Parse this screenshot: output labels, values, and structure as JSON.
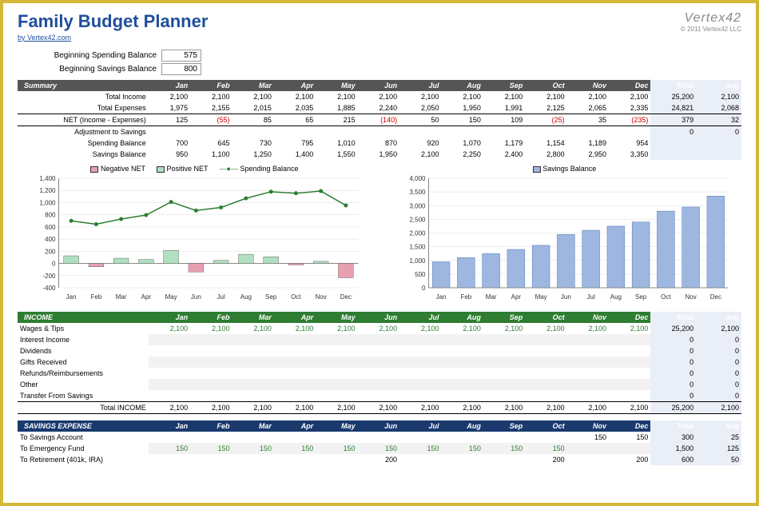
{
  "header": {
    "title": "Family Budget Planner",
    "sub_link": "by Vertex42.com",
    "logo": "Vertex42",
    "copyright": "© 2011 Vertex42 LLC"
  },
  "balances": {
    "spending_label": "Beginning Spending Balance",
    "spending_value": "575",
    "savings_label": "Beginning Savings Balance",
    "savings_value": "800"
  },
  "months": [
    "Jan",
    "Feb",
    "Mar",
    "Apr",
    "May",
    "Jun",
    "Jul",
    "Aug",
    "Sep",
    "Oct",
    "Nov",
    "Dec"
  ],
  "summary": {
    "title": "Summary",
    "rows": [
      {
        "label": "Total Income",
        "vals": [
          "2,100",
          "2,100",
          "2,100",
          "2,100",
          "2,100",
          "2,100",
          "2,100",
          "2,100",
          "2,100",
          "2,100",
          "2,100",
          "2,100"
        ],
        "total": "25,200",
        "avg": "2,100"
      },
      {
        "label": "Total Expenses",
        "vals": [
          "1,975",
          "2,155",
          "2,015",
          "2,035",
          "1,885",
          "2,240",
          "2,050",
          "1,950",
          "1,991",
          "2,125",
          "2,065",
          "2,335"
        ],
        "total": "24,821",
        "avg": "2,068"
      }
    ],
    "net": {
      "label": "NET (Income - Expenses)",
      "vals": [
        "125",
        "(55)",
        "85",
        "65",
        "215",
        "(140)",
        "50",
        "150",
        "109",
        "(25)",
        "35",
        "(235)"
      ],
      "neg": [
        false,
        true,
        false,
        false,
        false,
        true,
        false,
        false,
        false,
        true,
        false,
        true
      ],
      "total": "379",
      "avg": "32"
    },
    "adj": {
      "label": "Adjustment to Savings",
      "vals": [
        "",
        "",
        "",
        "",
        "",
        "",
        "",
        "",
        "",
        "",
        "",
        ""
      ],
      "total": "0",
      "avg": "0"
    },
    "spend": {
      "label": "Spending Balance",
      "vals": [
        "700",
        "645",
        "730",
        "795",
        "1,010",
        "870",
        "920",
        "1,070",
        "1,179",
        "1,154",
        "1,189",
        "954"
      ],
      "total": "",
      "avg": ""
    },
    "save": {
      "label": "Savings Balance",
      "vals": [
        "950",
        "1,100",
        "1,250",
        "1,400",
        "1,550",
        "1,950",
        "2,100",
        "2,250",
        "2,400",
        "2,800",
        "2,950",
        "3,350"
      ],
      "total": "",
      "avg": ""
    }
  },
  "chart_left": {
    "legend": [
      {
        "name": "Negative NET",
        "color": "#e8a0b0",
        "type": "box"
      },
      {
        "name": "Positive NET",
        "color": "#b0e0c0",
        "type": "box"
      },
      {
        "name": "Spending Balance",
        "color": "#2e7d32",
        "type": "line"
      }
    ],
    "ylim": [
      -400,
      1400
    ],
    "ystep": 200,
    "net_values": [
      125,
      -55,
      85,
      65,
      215,
      -140,
      50,
      150,
      109,
      -25,
      35,
      -235
    ],
    "spend_values": [
      700,
      645,
      730,
      795,
      1010,
      870,
      920,
      1070,
      1179,
      1154,
      1189,
      954
    ],
    "pos_color": "#b0e0c0",
    "neg_color": "#e8a0b0",
    "line_color": "#2e7d32"
  },
  "chart_right": {
    "legend": [
      {
        "name": "Savings Balance",
        "color": "#9db7e0",
        "type": "box"
      }
    ],
    "ylim": [
      0,
      4000
    ],
    "ystep": 500,
    "values": [
      950,
      1100,
      1250,
      1400,
      1550,
      1950,
      2100,
      2250,
      2400,
      2800,
      2950,
      3350
    ],
    "color": "#9db7e0"
  },
  "income": {
    "title": "INCOME",
    "rows": [
      {
        "label": "Wages & Tips",
        "vals": [
          "2,100",
          "2,100",
          "2,100",
          "2,100",
          "2,100",
          "2,100",
          "2,100",
          "2,100",
          "2,100",
          "2,100",
          "2,100",
          "2,100"
        ],
        "total": "25,200",
        "avg": "2,100",
        "hl": true
      },
      {
        "label": "Interest Income",
        "vals": [
          "",
          "",
          "",
          "",
          "",
          "",
          "",
          "",
          "",
          "",
          "",
          ""
        ],
        "total": "0",
        "avg": "0"
      },
      {
        "label": "Dividends",
        "vals": [
          "",
          "",
          "",
          "",
          "",
          "",
          "",
          "",
          "",
          "",
          "",
          ""
        ],
        "total": "0",
        "avg": "0"
      },
      {
        "label": "Gifts Received",
        "vals": [
          "",
          "",
          "",
          "",
          "",
          "",
          "",
          "",
          "",
          "",
          "",
          ""
        ],
        "total": "0",
        "avg": "0"
      },
      {
        "label": "Refunds/Reimbursements",
        "vals": [
          "",
          "",
          "",
          "",
          "",
          "",
          "",
          "",
          "",
          "",
          "",
          ""
        ],
        "total": "0",
        "avg": "0"
      },
      {
        "label": "Other",
        "vals": [
          "",
          "",
          "",
          "",
          "",
          "",
          "",
          "",
          "",
          "",
          "",
          ""
        ],
        "total": "0",
        "avg": "0"
      },
      {
        "label": "Transfer From Savings",
        "vals": [
          "",
          "",
          "",
          "",
          "",
          "",
          "",
          "",
          "",
          "",
          "",
          ""
        ],
        "total": "0",
        "avg": "0"
      }
    ],
    "total_row": {
      "label": "Total INCOME",
      "vals": [
        "2,100",
        "2,100",
        "2,100",
        "2,100",
        "2,100",
        "2,100",
        "2,100",
        "2,100",
        "2,100",
        "2,100",
        "2,100",
        "2,100"
      ],
      "total": "25,200",
      "avg": "2,100"
    }
  },
  "savings_exp": {
    "title": "SAVINGS EXPENSE",
    "rows": [
      {
        "label": "To Savings Account",
        "vals": [
          "",
          "",
          "",
          "",
          "",
          "",
          "",
          "",
          "",
          "",
          "150",
          "150"
        ],
        "total": "300",
        "avg": "25",
        "hl": false
      },
      {
        "label": "To Emergency Fund",
        "vals": [
          "150",
          "150",
          "150",
          "150",
          "150",
          "150",
          "150",
          "150",
          "150",
          "150",
          "",
          ""
        ],
        "total": "1,500",
        "avg": "125",
        "hl": true
      },
      {
        "label": "To Retirement (401k, IRA)",
        "vals": [
          "",
          "",
          "",
          "",
          "",
          "200",
          "",
          "",
          "",
          "200",
          "",
          "200"
        ],
        "total": "600",
        "avg": "50",
        "hl": false
      }
    ]
  },
  "labels": {
    "total": "Total",
    "avg": "Avg"
  }
}
